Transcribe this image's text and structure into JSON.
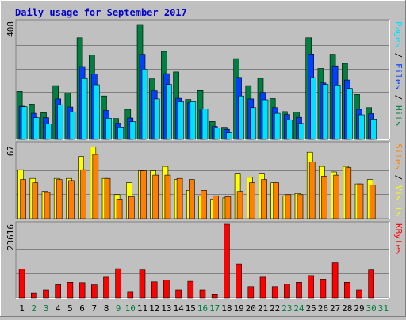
{
  "chart_data": {
    "type": "bar",
    "title": "Daily usage for September 2017",
    "categories": [
      "1",
      "2",
      "3",
      "4",
      "5",
      "6",
      "7",
      "8",
      "9",
      "10",
      "11",
      "12",
      "13",
      "14",
      "15",
      "16",
      "17",
      "18",
      "19",
      "20",
      "21",
      "22",
      "23",
      "24",
      "25",
      "26",
      "27",
      "28",
      "29",
      "30",
      "31"
    ],
    "weekend_days": [
      "2",
      "3",
      "9",
      "10",
      "16",
      "17",
      "23",
      "24",
      "30",
      "31"
    ],
    "colors": {
      "background": "#c0c0c0",
      "plot": "#c0c0c0",
      "title": "#0000cc",
      "hits": "#008040",
      "files": "#0040ff",
      "pages": "#00e0ff",
      "visits": "#ffff00",
      "sites": "#ff8000",
      "kbytes": "#ff0000",
      "weekday_label": "#000000",
      "weekend_label": "#008040"
    },
    "panels": [
      {
        "name": "hits-files-pages",
        "max_label": "408",
        "ylim": [
          0,
          408
        ],
        "series": [
          {
            "name": "Hits",
            "color": "#008040",
            "values": [
              166,
              122,
              92,
              186,
              160,
              351,
              291,
              150,
              72,
              104,
              397,
              209,
              304,
              233,
              138,
              169,
              62,
              42,
              279,
              186,
              211,
              141,
              96,
              95,
              351,
              245,
              294,
              263,
              155,
              110,
              0
            ]
          },
          {
            "name": "Files",
            "color": "#0040ff",
            "values": [
              115,
              90,
              75,
              140,
              112,
              252,
              226,
              100,
              56,
              74,
              294,
              168,
              227,
              142,
              128,
              106,
              45,
              35,
              214,
              140,
              162,
              110,
              86,
              76,
              295,
              195,
              254,
              205,
              104,
              89,
              0
            ]
          },
          {
            "name": "Pages",
            "color": "#00e0ff",
            "values": [
              113,
              75,
              54,
              120,
              95,
              210,
              189,
              73,
              43,
              61,
              243,
              140,
              190,
              130,
              130,
              106,
              40,
              23,
              150,
              110,
              137,
              90,
              67,
              55,
              213,
              190,
              188,
              176,
              85,
              70,
              0
            ]
          }
        ],
        "legend": [
          {
            "text": "Pages",
            "color": "#00e0ff"
          },
          {
            "text": " / ",
            "color": "#000000"
          },
          {
            "text": "Files",
            "color": "#0040ff"
          },
          {
            "text": " / ",
            "color": "#000000"
          },
          {
            "text": "Hits",
            "color": "#008040"
          }
        ]
      },
      {
        "name": "visits-sites",
        "max_label": "67",
        "ylim": [
          0,
          67
        ],
        "series": [
          {
            "name": "Visits",
            "color": "#ffff00",
            "values": [
              45,
              37,
              25,
              37,
              37,
              57,
              66,
              37,
              22,
              33,
              44,
              44,
              48,
              36,
              26,
              21,
              18,
              19,
              41,
              38,
              41,
              33,
              21,
              23,
              61,
              48,
              43,
              48,
              32,
              36,
              0
            ]
          },
          {
            "name": "Sites",
            "color": "#ff8000",
            "values": [
              36,
              33,
              24,
              36,
              35,
              45,
              59,
              37,
              18,
              20,
              44,
              40,
              40,
              37,
              36,
              26,
              21,
              20,
              25,
              33,
              36,
              33,
              22,
              22,
              52,
              39,
              40,
              47,
              32,
              31,
              0
            ]
          }
        ],
        "legend": [
          {
            "text": "Sites",
            "color": "#ff8000"
          },
          {
            "text": " / ",
            "color": "#000000"
          },
          {
            "text": "Visits",
            "color": "#ffff00"
          }
        ]
      },
      {
        "name": "kbytes",
        "max_label": "23616",
        "ylim": [
          0,
          23616
        ],
        "series": [
          {
            "name": "KBytes",
            "color": "#ff0000",
            "values": [
              9304,
              1503,
              2551,
              4220,
              4998,
              4886,
              4157,
              6624,
              9379,
              1801,
              8972,
              5129,
              5706,
              2551,
              5316,
              2551,
              1201,
              23616,
              10904,
              3600,
              6624,
              3600,
              4501,
              4998,
              7128,
              5998,
              11282,
              5000,
              2551,
              8972,
              0
            ]
          }
        ],
        "legend": [
          {
            "text": "KBytes",
            "color": "#ff0000"
          }
        ]
      }
    ]
  }
}
